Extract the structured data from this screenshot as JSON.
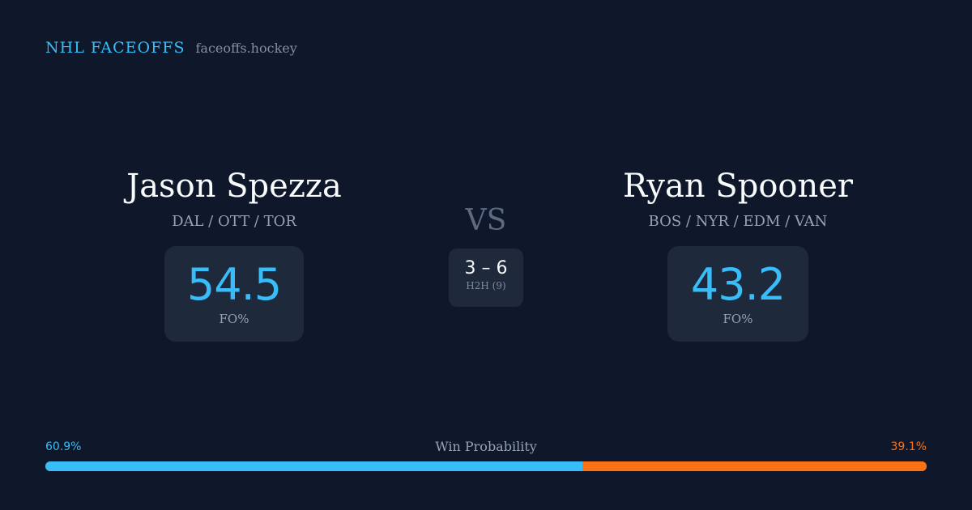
{
  "header": {
    "brand": "NHL FACEOFFS",
    "url": "faceoffs.hockey"
  },
  "players": {
    "left": {
      "name": "Jason Spezza",
      "teams": "DAL / OTT / TOR",
      "fo_value": "54.5",
      "fo_label": "FO%"
    },
    "right": {
      "name": "Ryan Spooner",
      "teams": "BOS / NYR / EDM / VAN",
      "fo_value": "43.2",
      "fo_label": "FO%"
    }
  },
  "versus": {
    "label": "VS",
    "h2h_score": "3 – 6",
    "h2h_label": "H2H (9)"
  },
  "win_probability": {
    "title": "Win Probability",
    "left_label": "60.9%",
    "right_label": "39.1%",
    "left_fraction": 0.609,
    "right_fraction": 0.391,
    "left_color": "#38bdf8",
    "right_color": "#f97316"
  },
  "colors": {
    "background": "#0f172a",
    "card": "#1e293b",
    "accent": "#38bdf8",
    "opponent": "#f97316"
  }
}
